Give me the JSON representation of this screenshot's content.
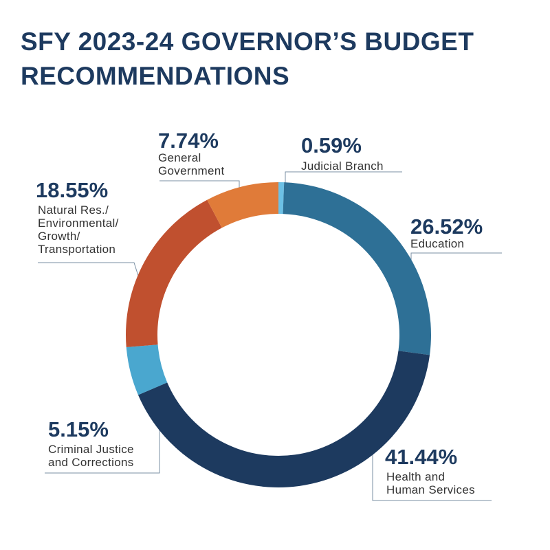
{
  "chart_data": {
    "type": "donut",
    "title": "SFY 2023-24 GOVERNOR’S BUDGET RECOMMENDATIONS",
    "categories": [
      "Judicial Branch",
      "Education",
      "Health and\nHuman Services",
      "Criminal Justice\nand Corrections",
      "Natural Res./\nEnvironmental/\nGrowth/\nTransportation",
      "General\nGovernment"
    ],
    "values": [
      0.59,
      26.52,
      41.44,
      5.15,
      18.55,
      7.74
    ],
    "value_labels": [
      "0.59%",
      "26.52%",
      "41.44%",
      "5.15%",
      "18.55%",
      "7.74%"
    ],
    "colors": [
      "#6cc0e5",
      "#2e7096",
      "#1d3a5f",
      "#4aa7cf",
      "#c0502f",
      "#e07b39"
    ]
  }
}
